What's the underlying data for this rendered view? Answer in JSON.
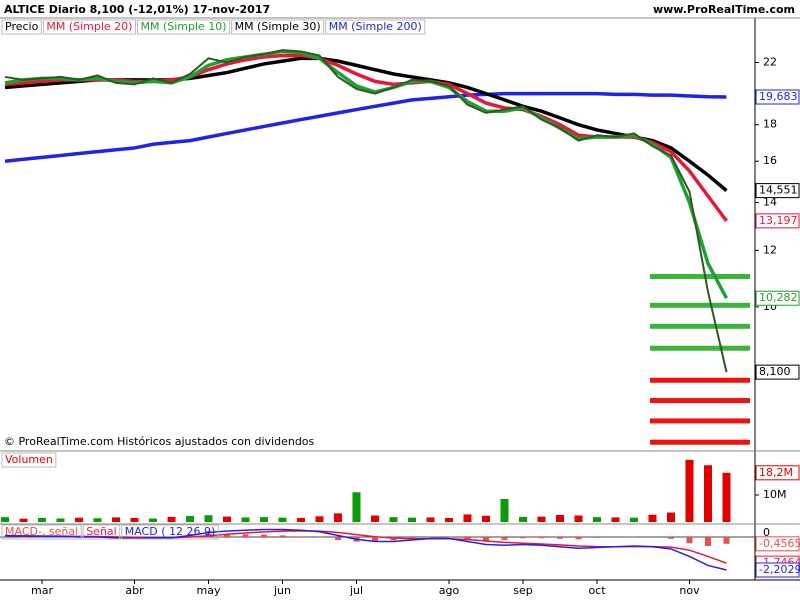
{
  "header": {
    "title": "ALTICE  Diario  8,100 (-12,01%)  17-nov-2017",
    "site": "www.ProRealTime.com"
  },
  "chart_data": [
    {
      "type": "line",
      "log_scale": true,
      "ylim": [
        6.3,
        25.4
      ],
      "yticks": [
        10,
        12,
        14,
        16,
        18,
        22
      ],
      "watermark": "© ProRealTime.com  Históricos ajustados con dividendos",
      "categories": [
        null,
        null,
        "mar",
        null,
        null,
        null,
        null,
        "abr",
        null,
        null,
        null,
        "may",
        null,
        null,
        null,
        "jun",
        null,
        null,
        null,
        "jul",
        null,
        null,
        null,
        null,
        "ago",
        null,
        null,
        null,
        "sep",
        null,
        null,
        null,
        "oct",
        null,
        null,
        null,
        null,
        "nov",
        null,
        null
      ],
      "series": [
        {
          "name": "Precio",
          "color": "#2d5a1b",
          "values": [
            21.0,
            20.8,
            20.9,
            21.0,
            20.8,
            21.1,
            20.6,
            20.5,
            20.9,
            20.6,
            21.2,
            22.3,
            22.0,
            22.4,
            22.6,
            22.9,
            22.8,
            22.5,
            21.0,
            20.2,
            19.9,
            20.3,
            20.8,
            20.7,
            20.4,
            19.2,
            18.7,
            18.9,
            19.1,
            18.3,
            17.8,
            17.1,
            17.4,
            17.3,
            17.5,
            16.8,
            16.3,
            14.5,
            10.5,
            8.1
          ],
          "end_label": "8,100"
        },
        {
          "name": "MM (Simple 20)",
          "color": "#e8173a",
          "values": [
            20.5,
            20.6,
            20.7,
            20.8,
            20.8,
            20.8,
            20.8,
            20.7,
            20.7,
            20.8,
            21.0,
            21.5,
            21.9,
            22.2,
            22.4,
            22.5,
            22.5,
            22.3,
            21.8,
            21.2,
            20.7,
            20.5,
            20.6,
            20.7,
            20.5,
            19.9,
            19.3,
            19.0,
            18.9,
            18.5,
            18.0,
            17.4,
            17.3,
            17.3,
            17.3,
            17.0,
            16.5,
            15.5,
            14.3,
            13.197
          ],
          "end_label": "13,197"
        },
        {
          "name": "MM (Simple 10)",
          "color": "#1fa037",
          "values": [
            20.6,
            20.8,
            20.9,
            20.9,
            20.8,
            20.9,
            20.7,
            20.6,
            20.7,
            20.6,
            21.0,
            21.8,
            22.2,
            22.4,
            22.6,
            22.8,
            22.7,
            22.3,
            21.3,
            20.4,
            20.0,
            20.3,
            20.7,
            20.7,
            20.3,
            19.4,
            18.8,
            18.8,
            19.0,
            18.4,
            17.8,
            17.2,
            17.3,
            17.3,
            17.4,
            16.9,
            16.2,
            14.0,
            11.5,
            10.282
          ],
          "end_label": "10,282"
        },
        {
          "name": "MM (Simple 30)",
          "color": "#000000",
          "values": [
            20.3,
            20.4,
            20.5,
            20.6,
            20.7,
            20.8,
            20.8,
            20.8,
            20.8,
            20.8,
            20.9,
            21.1,
            21.3,
            21.6,
            21.9,
            22.1,
            22.3,
            22.3,
            22.1,
            21.8,
            21.5,
            21.2,
            21.0,
            20.8,
            20.6,
            20.3,
            19.9,
            19.5,
            19.1,
            18.8,
            18.4,
            18.0,
            17.7,
            17.5,
            17.3,
            17.1,
            16.7,
            16.0,
            15.3,
            14.551
          ],
          "end_label": "14,551"
        },
        {
          "name": "MM (Simple 200)",
          "color": "#2323e6",
          "values": [
            16.0,
            16.1,
            16.2,
            16.3,
            16.4,
            16.5,
            16.6,
            16.7,
            16.9,
            17.0,
            17.1,
            17.3,
            17.5,
            17.7,
            17.9,
            18.1,
            18.3,
            18.5,
            18.7,
            18.9,
            19.1,
            19.3,
            19.5,
            19.6,
            19.7,
            19.8,
            19.85,
            19.9,
            19.9,
            19.9,
            19.9,
            19.9,
            19.9,
            19.85,
            19.85,
            19.8,
            19.8,
            19.75,
            19.7,
            19.683
          ],
          "end_label": "19,683"
        }
      ],
      "levels": [
        {
          "color": "#3cb43c",
          "values": [
            11.03,
            10.05,
            9.39,
            8.75
          ]
        },
        {
          "color": "#ee1111",
          "values": [
            7.89,
            7.39,
            6.92,
            6.46
          ]
        }
      ]
    },
    {
      "type": "bar",
      "title": "Volumen",
      "ylim": [
        0,
        25900000
      ],
      "yticks": [
        {
          "value": 10000000,
          "label": "10M"
        }
      ],
      "end_label": "18,2M",
      "values": [
        1800000,
        1200000,
        1500000,
        1300000,
        1600000,
        1400000,
        1700000,
        1500000,
        1300000,
        1900000,
        2200000,
        2500000,
        2000000,
        1700000,
        1800000,
        1600000,
        1500000,
        2100000,
        3200000,
        11000000,
        2400000,
        1800000,
        1600000,
        1700000,
        1500000,
        2800000,
        2300000,
        8500000,
        1900000,
        2000000,
        2600000,
        2400000,
        1800000,
        1700000,
        1600000,
        2700000,
        3500000,
        23000000,
        21000000,
        18200000
      ],
      "colors": [
        "#0a9a0a",
        "#e00000",
        "#0a9a0a",
        "#0a9a0a",
        "#e00000",
        "#0a9a0a",
        "#e00000",
        "#e00000",
        "#0a9a0a",
        "#e00000",
        "#0a9a0a",
        "#0a9a0a",
        "#e00000",
        "#0a9a0a",
        "#0a9a0a",
        "#0a9a0a",
        "#e00000",
        "#e00000",
        "#e00000",
        "#0a9a0a",
        "#e00000",
        "#0a9a0a",
        "#0a9a0a",
        "#e00000",
        "#e00000",
        "#e00000",
        "#e00000",
        "#0a9a0a",
        "#0a9a0a",
        "#e00000",
        "#e00000",
        "#e00000",
        "#0a9a0a",
        "#e00000",
        "#0a9a0a",
        "#e00000",
        "#e00000",
        "#e00000",
        "#e00000",
        "#e00000"
      ]
    },
    {
      "type": "macd",
      "ylim": [
        -2.87,
        0.8
      ],
      "yticks": [
        0
      ],
      "series": [
        {
          "name": "MACD-, señal",
          "kind": "bar",
          "color": "#e85050",
          "values": [
            0,
            -0.03,
            -0.02,
            -0.01,
            -0.04,
            -0.03,
            -0.06,
            -0.08,
            -0.02,
            -0.01,
            0.1,
            0.22,
            0.22,
            0.18,
            0.16,
            0.11,
            0.04,
            -0.04,
            -0.2,
            -0.31,
            -0.32,
            -0.22,
            -0.08,
            0.02,
            0.02,
            -0.13,
            -0.23,
            -0.19,
            -0.08,
            -0.08,
            -0.12,
            -0.15,
            -0.06,
            0.0,
            0.04,
            -0.01,
            -0.12,
            -0.42,
            -0.6,
            -0.4565
          ],
          "end_label": "-0,4565"
        },
        {
          "name": "Señal",
          "kind": "line",
          "color": "#e8173a",
          "values": [
            0.1,
            0.08,
            0.07,
            0.06,
            0.04,
            0.03,
            0.01,
            -0.02,
            -0.03,
            -0.04,
            0.0,
            0.08,
            0.18,
            0.27,
            0.34,
            0.39,
            0.41,
            0.39,
            0.3,
            0.16,
            0.02,
            -0.08,
            -0.12,
            -0.12,
            -0.12,
            -0.17,
            -0.27,
            -0.36,
            -0.42,
            -0.47,
            -0.53,
            -0.6,
            -0.64,
            -0.65,
            -0.64,
            -0.64,
            -0.68,
            -0.88,
            -1.3,
            -1.7464
          ],
          "end_label": "-1,7464"
        },
        {
          "name": "MACD ( 12 26 9)",
          "kind": "line",
          "color": "#2323e6",
          "values": [
            0.1,
            0.05,
            0.05,
            0.05,
            0.0,
            0.0,
            -0.05,
            -0.1,
            -0.05,
            -0.05,
            0.1,
            0.3,
            0.4,
            0.45,
            0.5,
            0.5,
            0.45,
            0.35,
            0.1,
            -0.15,
            -0.3,
            -0.3,
            -0.2,
            -0.1,
            -0.1,
            -0.3,
            -0.5,
            -0.55,
            -0.5,
            -0.55,
            -0.65,
            -0.75,
            -0.7,
            -0.65,
            -0.6,
            -0.65,
            -0.8,
            -1.3,
            -1.9,
            -2.2029
          ],
          "end_label": "-2,2029"
        }
      ]
    }
  ]
}
